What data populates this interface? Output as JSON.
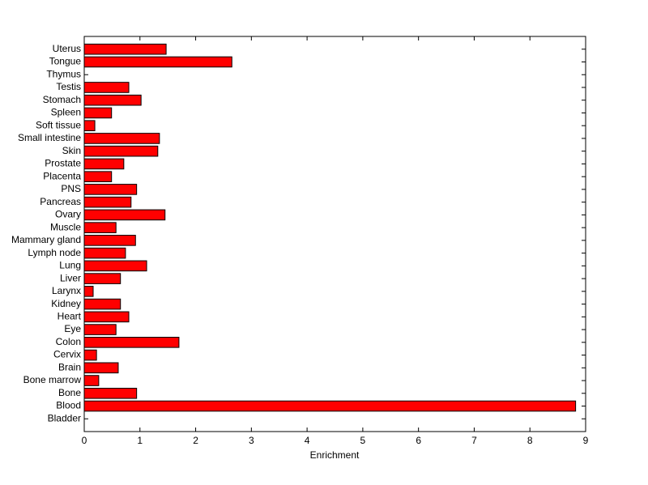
{
  "chart_data": {
    "type": "barh",
    "xlabel": "Enrichment",
    "categories": [
      "Uterus",
      "Tongue",
      "Thymus",
      "Testis",
      "Stomach",
      "Spleen",
      "Soft tissue",
      "Small intestine",
      "Skin",
      "Prostate",
      "Placenta",
      "PNS",
      "Pancreas",
      "Ovary",
      "Muscle",
      "Mammary gland",
      "Lymph node",
      "Lung",
      "Liver",
      "Larynx",
      "Kidney",
      "Heart",
      "Eye",
      "Colon",
      "Cervix",
      "Brain",
      "Bone marrow",
      "Bone",
      "Blood",
      "Bladder"
    ],
    "values": [
      1.47,
      2.65,
      0,
      0.8,
      1.02,
      0.49,
      0.19,
      1.35,
      1.32,
      0.71,
      0.49,
      0.94,
      0.84,
      1.45,
      0.57,
      0.92,
      0.74,
      1.12,
      0.65,
      0.16,
      0.65,
      0.8,
      0.57,
      1.7,
      0.22,
      0.61,
      0.26,
      0.94,
      8.82,
      0
    ],
    "color": "#ff0000",
    "xlim": [
      0,
      9
    ],
    "xticks": [
      0,
      1,
      2,
      3,
      4,
      5,
      6,
      7,
      8,
      9
    ],
    "grid": false
  }
}
